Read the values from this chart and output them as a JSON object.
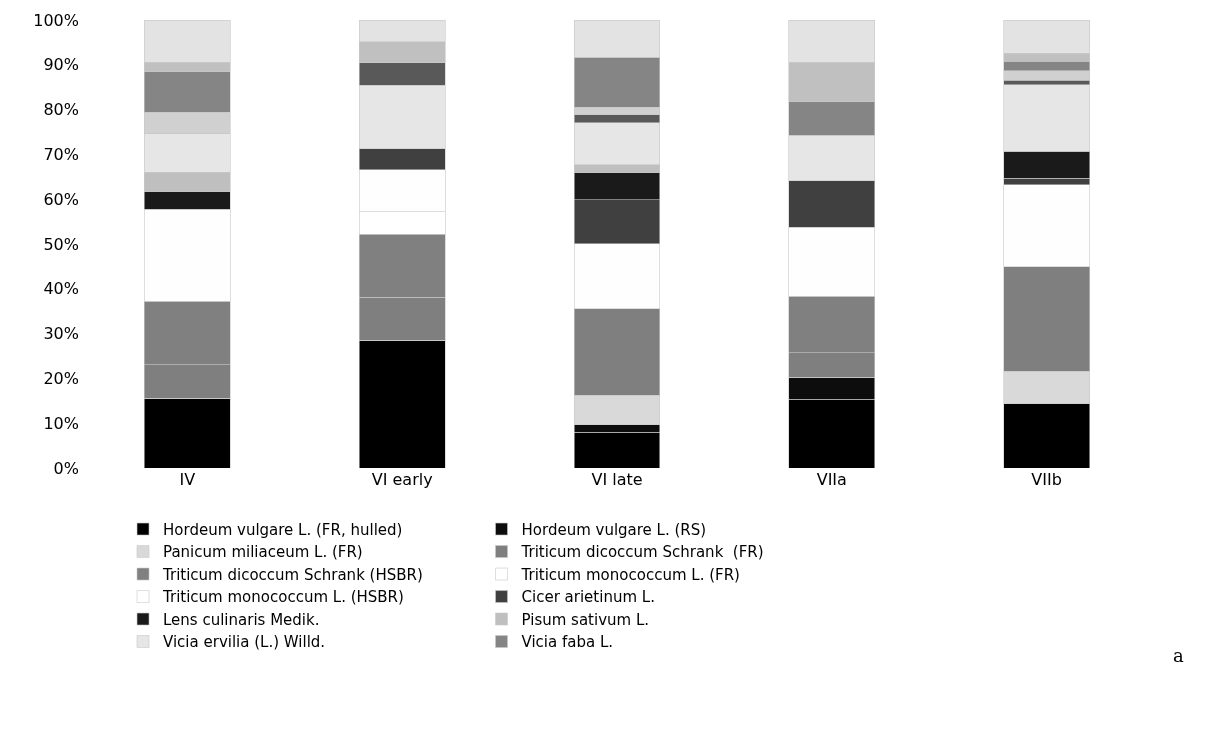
{
  "chart_data": {
    "type": "bar",
    "stacked": true,
    "categories": [
      "IV",
      "VI early",
      "VI late",
      "VIIa",
      "VIIb"
    ],
    "ylim": [
      0,
      100
    ],
    "yticks": [
      {
        "value": 0,
        "label": "0%"
      },
      {
        "value": 10,
        "label": "10%"
      },
      {
        "value": 20,
        "label": "20%"
      },
      {
        "value": 30,
        "label": "30%"
      },
      {
        "value": 40,
        "label": "40%"
      },
      {
        "value": 50,
        "label": "50%"
      },
      {
        "value": 60,
        "label": "60%"
      },
      {
        "value": 70,
        "label": "70%"
      },
      {
        "value": 80,
        "label": "80%"
      },
      {
        "value": 90,
        "label": "90%"
      },
      {
        "value": 100,
        "label": "100%"
      }
    ],
    "legend": "bottom",
    "annotations": [
      "a"
    ],
    "series": [
      {
        "name": "Hordeum vulgare L. (FR, hulled)",
        "color": "#000000",
        "values": [
          15.6,
          28.5,
          8.0,
          15.4,
          14.3
        ]
      },
      {
        "name": "Hordeum vulgare L. (RS)",
        "color": "#0d0d0d",
        "values": [
          0,
          0,
          1.6,
          4.9,
          0
        ]
      },
      {
        "name": "Panicum miliaceum L. (FR)",
        "color": "#d9d9d9",
        "values": [
          0,
          0,
          6.6,
          0,
          7.3
        ]
      },
      {
        "name": "Triticum dicoccum Schrank  (FR)",
        "color": "#7f7f7f",
        "values": [
          7.4,
          9.6,
          19.3,
          5.4,
          23.3
        ]
      },
      {
        "name": "Triticum dicoccum Schrank (HSBR)",
        "color": "#808080",
        "values": [
          14.2,
          14.1,
          0,
          12.6,
          0
        ]
      },
      {
        "name": "Triticum monococcum L. (FR)",
        "color": "#ffffff",
        "values": [
          0,
          5.0,
          0,
          0,
          0
        ]
      },
      {
        "name": "Triticum monococcum L. (HSBR)",
        "color": "#fefefe",
        "values": [
          20.6,
          9.4,
          14.6,
          15.4,
          18.3
        ]
      },
      {
        "name": "Cicer arietinum L.",
        "color": "#404040",
        "values": [
          0,
          4.7,
          9.8,
          10.4,
          1.5
        ]
      },
      {
        "name": "Lens culinaris Medik.",
        "color": "#1a1a1a",
        "values": [
          3.9,
          0,
          6.0,
          0,
          6.0
        ]
      },
      {
        "name": "Pisum sativum L.",
        "color": "#bfbfbf",
        "values": [
          4.3,
          0,
          1.8,
          0,
          0
        ]
      },
      {
        "name": "Vicia ervilia (L.) Willd.",
        "color": "#e6e6e6",
        "values": [
          8.7,
          14.1,
          9.4,
          10.2,
          14.8
        ]
      },
      {
        "color": "#595959",
        "values": [
          0,
          5.2,
          1.7,
          0,
          1.0
        ]
      },
      {
        "color": "#d0d0d0",
        "values": [
          4.7,
          0,
          1.7,
          0,
          2.2
        ]
      },
      {
        "name": "Vicia faba L.",
        "color": "#858585",
        "values": [
          9.1,
          0,
          11.2,
          7.5,
          2.1
        ]
      },
      {
        "color": "#c0c0c0",
        "values": [
          2.1,
          4.5,
          0,
          8.8,
          1.8
        ]
      },
      {
        "color": "#e3e3e3",
        "values": [
          9.4,
          4.9,
          8.3,
          9.4,
          7.4
        ]
      }
    ]
  }
}
